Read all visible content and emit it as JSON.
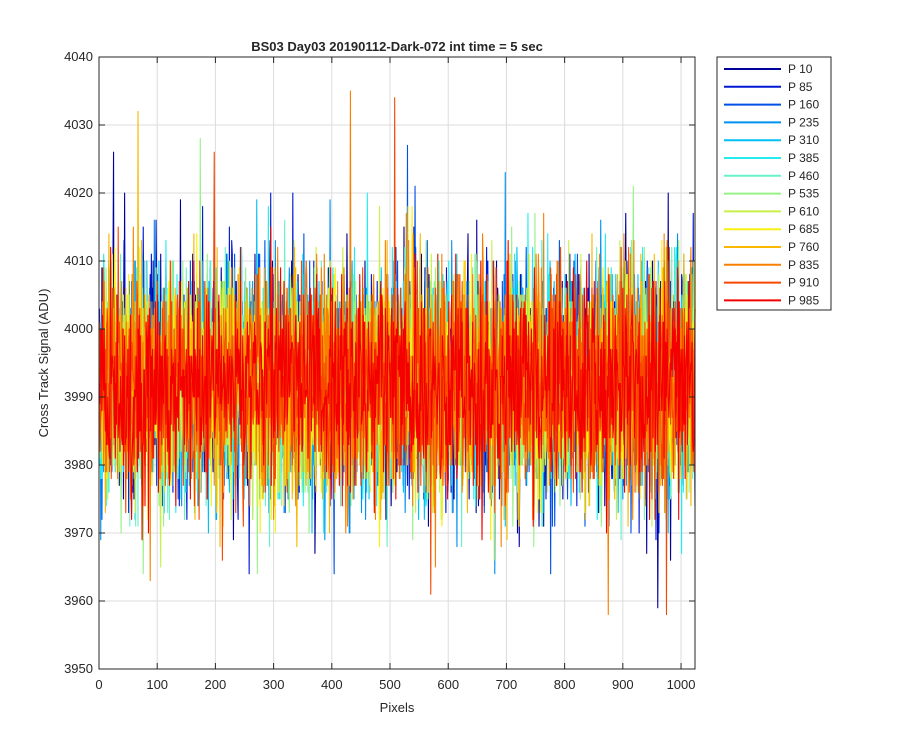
{
  "chart_data": {
    "type": "line",
    "title": "BS03 Day03 20190112-Dark-072 int time = 5 sec",
    "xlabel": "Pixels",
    "ylabel": "Cross Track Signal (ADU)",
    "xlim": [
      0,
      1024
    ],
    "ylim": [
      3950,
      4040
    ],
    "x_ticks": [
      0,
      100,
      200,
      300,
      400,
      500,
      600,
      700,
      800,
      900,
      1000
    ],
    "y_ticks": [
      3950,
      3960,
      3970,
      3980,
      3990,
      4000,
      4010,
      4020,
      4030,
      4040
    ],
    "grid": true,
    "legend_position": "outside-top-right",
    "x_range": [
      1,
      1024
    ],
    "series_summary": {
      "mean": 3992,
      "noise_std": 8,
      "typical_min": 3970,
      "typical_max": 4015
    },
    "series": [
      {
        "name": "P 10",
        "color": "#00009a"
      },
      {
        "name": "P 85",
        "color": "#0018d4"
      },
      {
        "name": "P 160",
        "color": "#0050e8"
      },
      {
        "name": "P 235",
        "color": "#0090f0"
      },
      {
        "name": "P 310",
        "color": "#00c0f8"
      },
      {
        "name": "P 385",
        "color": "#22ecf0"
      },
      {
        "name": "P 460",
        "color": "#66f2c8"
      },
      {
        "name": "P 535",
        "color": "#96f286"
      },
      {
        "name": "P 610",
        "color": "#c8f048"
      },
      {
        "name": "P 685",
        "color": "#f8f010"
      },
      {
        "name": "P 760",
        "color": "#f8b800"
      },
      {
        "name": "P 835",
        "color": "#f88000"
      },
      {
        "name": "P 910",
        "color": "#f84800"
      },
      {
        "name": "P 985",
        "color": "#f40000"
      }
    ],
    "spikes": [
      {
        "series": "P 835",
        "x": 432,
        "y": 4035
      },
      {
        "series": "P 910",
        "x": 508,
        "y": 4034
      },
      {
        "series": "P 760",
        "x": 67,
        "y": 4032
      },
      {
        "series": "P 160",
        "x": 530,
        "y": 4027
      },
      {
        "series": "P 10",
        "x": 25,
        "y": 4026
      },
      {
        "series": "P 910",
        "x": 198,
        "y": 4026
      },
      {
        "series": "P 535",
        "x": 174,
        "y": 4028
      },
      {
        "series": "P 835",
        "x": 875,
        "y": 3958
      },
      {
        "series": "P 910",
        "x": 975,
        "y": 3958
      },
      {
        "series": "P 910",
        "x": 570,
        "y": 3961
      },
      {
        "series": "P 835",
        "x": 88,
        "y": 3963
      },
      {
        "series": "P 10",
        "x": 960,
        "y": 3959
      }
    ]
  }
}
